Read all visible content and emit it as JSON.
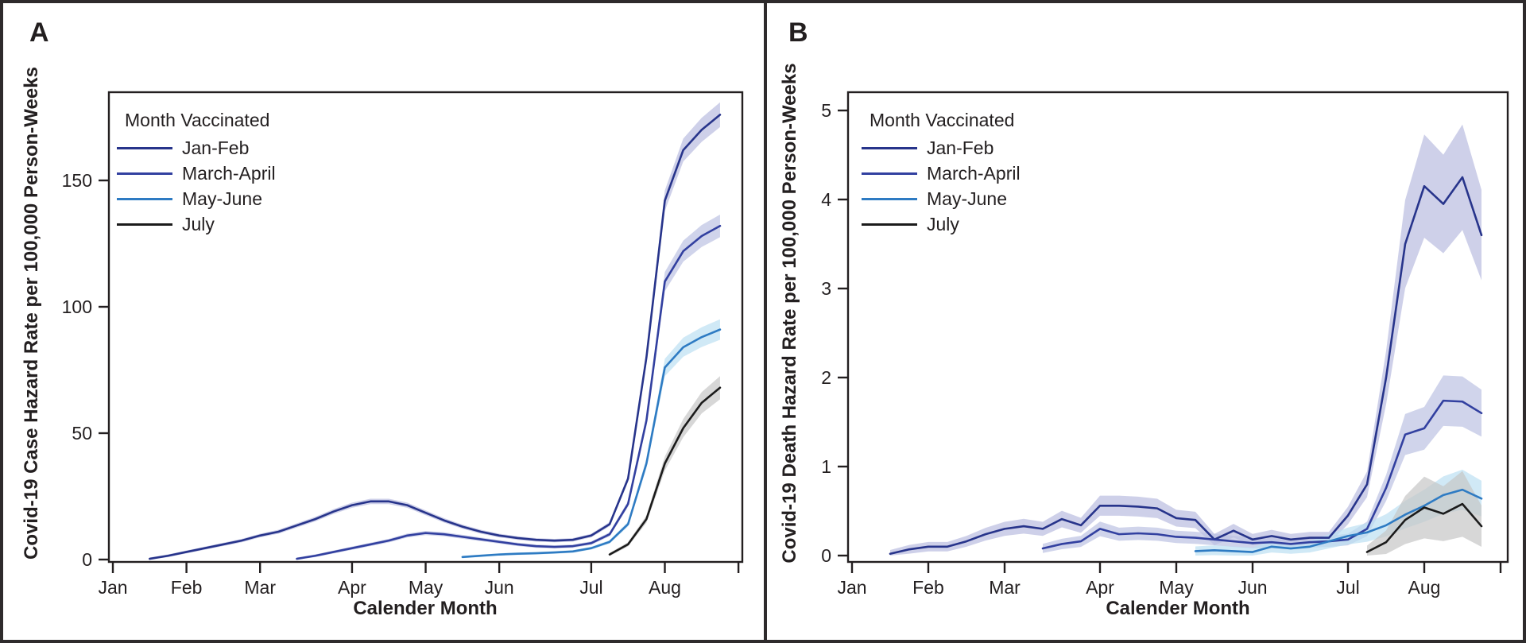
{
  "figure": {
    "background": "#ffffff",
    "border_color": "#2e2b2c",
    "text_color": "#231f20",
    "axis_color": "#231f20"
  },
  "chart_data": [
    {
      "panel_label": "A",
      "type": "line",
      "title": "",
      "ylabel": "Covid-19 Case Hazard Rate per 100,000 Person-Weeks",
      "xlabel": "Calender Month",
      "legend_title": "Month Vaccinated",
      "legend_position": "top-left-inside",
      "grid": false,
      "ylim": [
        0,
        185
      ],
      "yticks": [
        0,
        50,
        100,
        150
      ],
      "x_axis": {
        "unit": "week_of_year",
        "month_tick_labels": [
          "Jan",
          "Feb",
          "Mar",
          "Apr",
          "May",
          "Jun",
          "Jul",
          "Aug",
          ""
        ],
        "month_tick_weeks": [
          0,
          4,
          8,
          13,
          17,
          21,
          26,
          30,
          34
        ]
      },
      "series": [
        {
          "name": "Jan-Feb",
          "color": "#27348b",
          "band_color": "#b9bcdf",
          "band_fraction": 0.025,
          "band_min": 0.5,
          "weeks": [
            2,
            3,
            4,
            5,
            6,
            7,
            8,
            9,
            10,
            11,
            12,
            13,
            14,
            15,
            16,
            17,
            18,
            19,
            20,
            21,
            22,
            23,
            24,
            25,
            26,
            27,
            28,
            29,
            30,
            31,
            32,
            33
          ],
          "values": [
            0.3,
            1.5,
            3,
            4.5,
            6,
            7.5,
            9.5,
            11,
            13.5,
            16,
            19,
            21.5,
            23,
            23,
            21.5,
            18.5,
            15.5,
            13,
            11,
            9.5,
            8.5,
            7.8,
            7.5,
            7.8,
            9.5,
            14,
            32,
            80,
            142,
            162,
            170,
            176
          ]
        },
        {
          "name": "March-April",
          "color": "#3240a0",
          "band_color": "#bcc2e2",
          "band_fraction": 0.03,
          "band_min": 0.5,
          "weeks": [
            10,
            11,
            12,
            13,
            14,
            15,
            16,
            17,
            18,
            19,
            20,
            21,
            22,
            23,
            24,
            25,
            26,
            27,
            28,
            29,
            30,
            31,
            32,
            33
          ],
          "values": [
            0.3,
            1.5,
            3,
            4.5,
            6,
            7.5,
            9.5,
            10.5,
            10,
            9,
            8,
            7,
            6,
            5.3,
            5,
            5.3,
            6.5,
            10,
            22,
            55,
            110,
            122,
            128,
            132
          ]
        },
        {
          "name": "May-June",
          "color": "#2e7bc3",
          "band_color": "#bcdff2",
          "band_fraction": 0.04,
          "band_min": 0.4,
          "weeks": [
            19,
            20,
            21,
            22,
            23,
            24,
            25,
            26,
            27,
            28,
            29,
            30,
            31,
            32,
            33
          ],
          "values": [
            1,
            1.5,
            2,
            2.3,
            2.5,
            2.8,
            3.2,
            4.5,
            7,
            14,
            38,
            76,
            84,
            88,
            91
          ]
        },
        {
          "name": "July",
          "color": "#1b1b1b",
          "band_color": "#c6c6c6",
          "band_fraction": 0.06,
          "band_min": 0.5,
          "weeks": [
            27,
            28,
            29,
            30,
            31,
            32,
            33
          ],
          "values": [
            2,
            6,
            16,
            38,
            52,
            62,
            68
          ]
        }
      ]
    },
    {
      "panel_label": "B",
      "type": "line",
      "title": "",
      "ylabel": "Covid-19 Death Hazard Rate per 100,000 Person-Weeks",
      "xlabel": "Calender Month",
      "legend_title": "Month Vaccinated",
      "legend_position": "top-left-inside",
      "grid": false,
      "ylim": [
        0,
        5.2
      ],
      "yticks": [
        0,
        1,
        2,
        3,
        4,
        5
      ],
      "x_axis": {
        "unit": "week_of_year",
        "month_tick_labels": [
          "Jan",
          "Feb",
          "Mar",
          "Apr",
          "May",
          "Jun",
          "Jul",
          "Aug",
          ""
        ],
        "month_tick_weeks": [
          0,
          4,
          8,
          13,
          17,
          21,
          26,
          30,
          34
        ]
      },
      "series": [
        {
          "name": "Jan-Feb",
          "color": "#27348b",
          "band_color": "#b9bcdf",
          "band_fraction": 0.13,
          "band_min": 0.04,
          "weeks": [
            2,
            3,
            4,
            5,
            6,
            7,
            8,
            9,
            10,
            11,
            12,
            13,
            14,
            15,
            16,
            17,
            18,
            19,
            20,
            21,
            22,
            23,
            24,
            25,
            26,
            27,
            28,
            29,
            30,
            31,
            32,
            33
          ],
          "values": [
            0.02,
            0.07,
            0.1,
            0.1,
            0.16,
            0.24,
            0.3,
            0.33,
            0.3,
            0.41,
            0.34,
            0.56,
            0.56,
            0.55,
            0.53,
            0.42,
            0.4,
            0.18,
            0.28,
            0.18,
            0.22,
            0.18,
            0.2,
            0.2,
            0.45,
            0.8,
            2.0,
            3.5,
            4.15,
            3.95,
            4.25,
            3.6
          ]
        },
        {
          "name": "March-April",
          "color": "#3240a0",
          "band_color": "#bcc2e2",
          "band_fraction": 0.14,
          "band_min": 0.04,
          "weeks": [
            10,
            11,
            12,
            13,
            14,
            15,
            16,
            17,
            18,
            19,
            20,
            21,
            22,
            23,
            24,
            25,
            26,
            27,
            28,
            29,
            30,
            31,
            32,
            33
          ],
          "values": [
            0.08,
            0.13,
            0.16,
            0.3,
            0.24,
            0.25,
            0.24,
            0.21,
            0.2,
            0.18,
            0.16,
            0.14,
            0.15,
            0.13,
            0.15,
            0.16,
            0.18,
            0.3,
            0.76,
            1.36,
            1.43,
            1.74,
            1.73,
            1.6
          ]
        },
        {
          "name": "May-June",
          "color": "#2e7bc3",
          "band_color": "#bcdff2",
          "band_fraction": 0.25,
          "band_min": 0.04,
          "weeks": [
            18,
            19,
            20,
            21,
            22,
            23,
            24,
            25,
            26,
            27,
            28,
            29,
            30,
            31,
            32,
            33
          ],
          "values": [
            0.05,
            0.06,
            0.05,
            0.04,
            0.1,
            0.08,
            0.1,
            0.16,
            0.22,
            0.26,
            0.34,
            0.46,
            0.56,
            0.68,
            0.74,
            0.64
          ]
        },
        {
          "name": "July",
          "color": "#1b1b1b",
          "band_color": "#c6c6c6",
          "band_fraction": 0.55,
          "band_min": 0.05,
          "weeks": [
            27,
            28,
            29,
            30,
            31,
            32,
            33
          ],
          "values": [
            0.04,
            0.15,
            0.4,
            0.54,
            0.47,
            0.58,
            0.33
          ]
        }
      ]
    }
  ]
}
